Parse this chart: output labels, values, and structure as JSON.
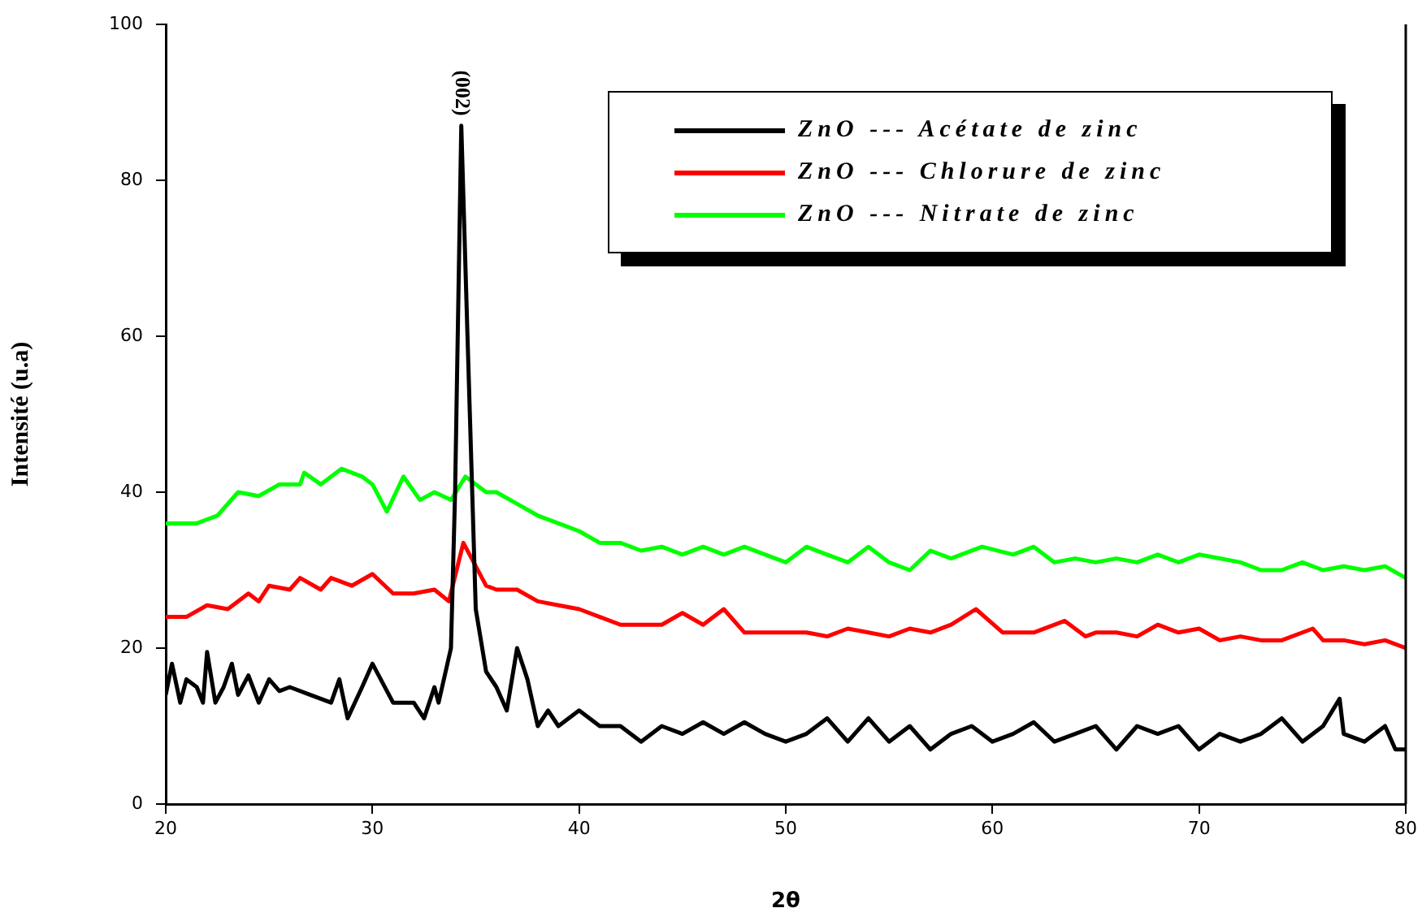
{
  "chart_data": {
    "type": "line",
    "xlabel": "2θ",
    "ylabel": "Intensité (u.a)",
    "xlim": [
      20,
      80
    ],
    "xticks": [
      20,
      30,
      40,
      50,
      60,
      70,
      80
    ],
    "ylim": [
      0,
      100
    ],
    "yticks": [
      0,
      20,
      40,
      60,
      80,
      100
    ],
    "grid": false,
    "legend": "top right",
    "marker": "none",
    "line_style": "solid",
    "annotations": [
      {
        "text": "(002)",
        "x": 34.3,
        "y": 87
      }
    ],
    "series": [
      {
        "name": "ZnO --- Acétate de zinc",
        "color": "#000000",
        "x": [
          20,
          20.3,
          20.7,
          21,
          21.5,
          21.8,
          22,
          22.4,
          22.8,
          23.2,
          23.5,
          24,
          24.5,
          25,
          25.5,
          26,
          27,
          28,
          28.4,
          28.8,
          29.5,
          30,
          31,
          32,
          32.5,
          33,
          33.2,
          33.8,
          34,
          34.3,
          34.6,
          35,
          35.5,
          36,
          36.5,
          37,
          37.5,
          38,
          38.5,
          39,
          40,
          41,
          42,
          43,
          44,
          45,
          46,
          47,
          48,
          49,
          50,
          51,
          52,
          53,
          54,
          55,
          56,
          57,
          58,
          59,
          60,
          61,
          62,
          63,
          64,
          65,
          66,
          67,
          68,
          69,
          70,
          71,
          72,
          73,
          74,
          75,
          76,
          76.8,
          77,
          78,
          79,
          79.5,
          80
        ],
        "values": [
          14,
          18,
          13,
          16,
          15,
          13,
          19.5,
          13,
          15,
          18,
          14,
          16.5,
          13,
          16,
          14.5,
          15,
          14,
          13,
          16,
          11,
          15,
          18,
          13,
          13,
          11,
          15,
          13,
          20,
          40,
          87,
          60,
          25,
          17,
          15,
          12,
          20,
          16,
          10,
          12,
          10,
          12,
          10,
          10,
          8,
          10,
          9,
          10.5,
          9,
          10.5,
          9,
          8,
          9,
          11,
          8,
          11,
          8,
          10,
          7,
          9,
          10,
          8,
          9,
          10.5,
          8,
          9,
          10,
          7,
          10,
          9,
          10,
          7,
          9,
          8,
          9,
          11,
          8,
          10,
          13.5,
          9,
          8,
          10,
          7,
          7
        ]
      },
      {
        "name": "ZnO --- Chlorure de zinc",
        "color": "#ff0000",
        "x": [
          20,
          21,
          22,
          23,
          24,
          24.5,
          25,
          26,
          26.5,
          27.5,
          28,
          29,
          30,
          31,
          32,
          33,
          33.7,
          34.4,
          35.5,
          36,
          37,
          38,
          39,
          40,
          41,
          42,
          43,
          44,
          45,
          46,
          47,
          48,
          49,
          50,
          51,
          52,
          53,
          54,
          55,
          56,
          57,
          58,
          59.2,
          60.5,
          61,
          62,
          63.5,
          64.5,
          65,
          66,
          67,
          68,
          69,
          70,
          71,
          72,
          73,
          74,
          75.5,
          76,
          77,
          78,
          79,
          80
        ],
        "values": [
          24,
          24,
          25.5,
          25,
          27,
          26,
          28,
          27.5,
          29,
          27.5,
          29,
          28,
          29.5,
          27,
          27,
          27.5,
          26,
          33.5,
          28,
          27.5,
          27.5,
          26,
          25.5,
          25,
          24,
          23,
          23,
          23,
          24.5,
          23,
          25,
          22,
          22,
          22,
          22,
          21.5,
          22.5,
          22,
          21.5,
          22.5,
          22,
          23,
          25,
          22,
          22,
          22,
          23.5,
          21.5,
          22,
          22,
          21.5,
          23,
          22,
          22.5,
          21,
          21.5,
          21,
          21,
          22.5,
          21,
          21,
          20.5,
          21,
          20
        ]
      },
      {
        "name": "ZnO --- Nitrate de zinc",
        "color": "#00ff00",
        "x": [
          20,
          21.5,
          22.5,
          23.5,
          24.5,
          25.5,
          26.5,
          26.7,
          27.5,
          28.5,
          29.5,
          30,
          30.7,
          31.5,
          32.3,
          33,
          33.8,
          34.5,
          35.5,
          36,
          37,
          38,
          39,
          40,
          41,
          42,
          43,
          44,
          45,
          46,
          47,
          48,
          49,
          50,
          51,
          52,
          53,
          54,
          55,
          56,
          57,
          58,
          59.5,
          61,
          62,
          63,
          64,
          65,
          66,
          67,
          68,
          69,
          70,
          72,
          73,
          74,
          75,
          76,
          77,
          78,
          79,
          80
        ],
        "values": [
          36,
          36,
          37,
          40,
          39.5,
          41,
          41,
          42.5,
          41,
          43,
          42,
          41,
          37.5,
          42,
          39,
          40,
          39,
          42,
          40,
          40,
          38.5,
          37,
          36,
          35,
          33.5,
          33.5,
          32.5,
          33,
          32,
          33,
          32,
          33,
          32,
          31,
          33,
          32,
          31,
          33,
          31,
          30,
          32.5,
          31.5,
          33,
          32,
          33,
          31,
          31.5,
          31,
          31.5,
          31,
          32,
          31,
          32,
          31,
          30,
          30,
          31,
          30,
          30.5,
          30,
          30.5,
          29
        ]
      }
    ]
  }
}
